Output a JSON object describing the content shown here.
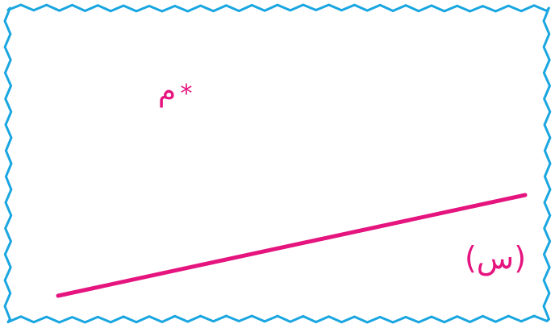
{
  "colors": {
    "border": "#1aa6e0",
    "ink": "#e5147f",
    "background": "#ffffff"
  },
  "point": {
    "marker": "*",
    "label": "م"
  },
  "line": {
    "label": "(س)"
  }
}
